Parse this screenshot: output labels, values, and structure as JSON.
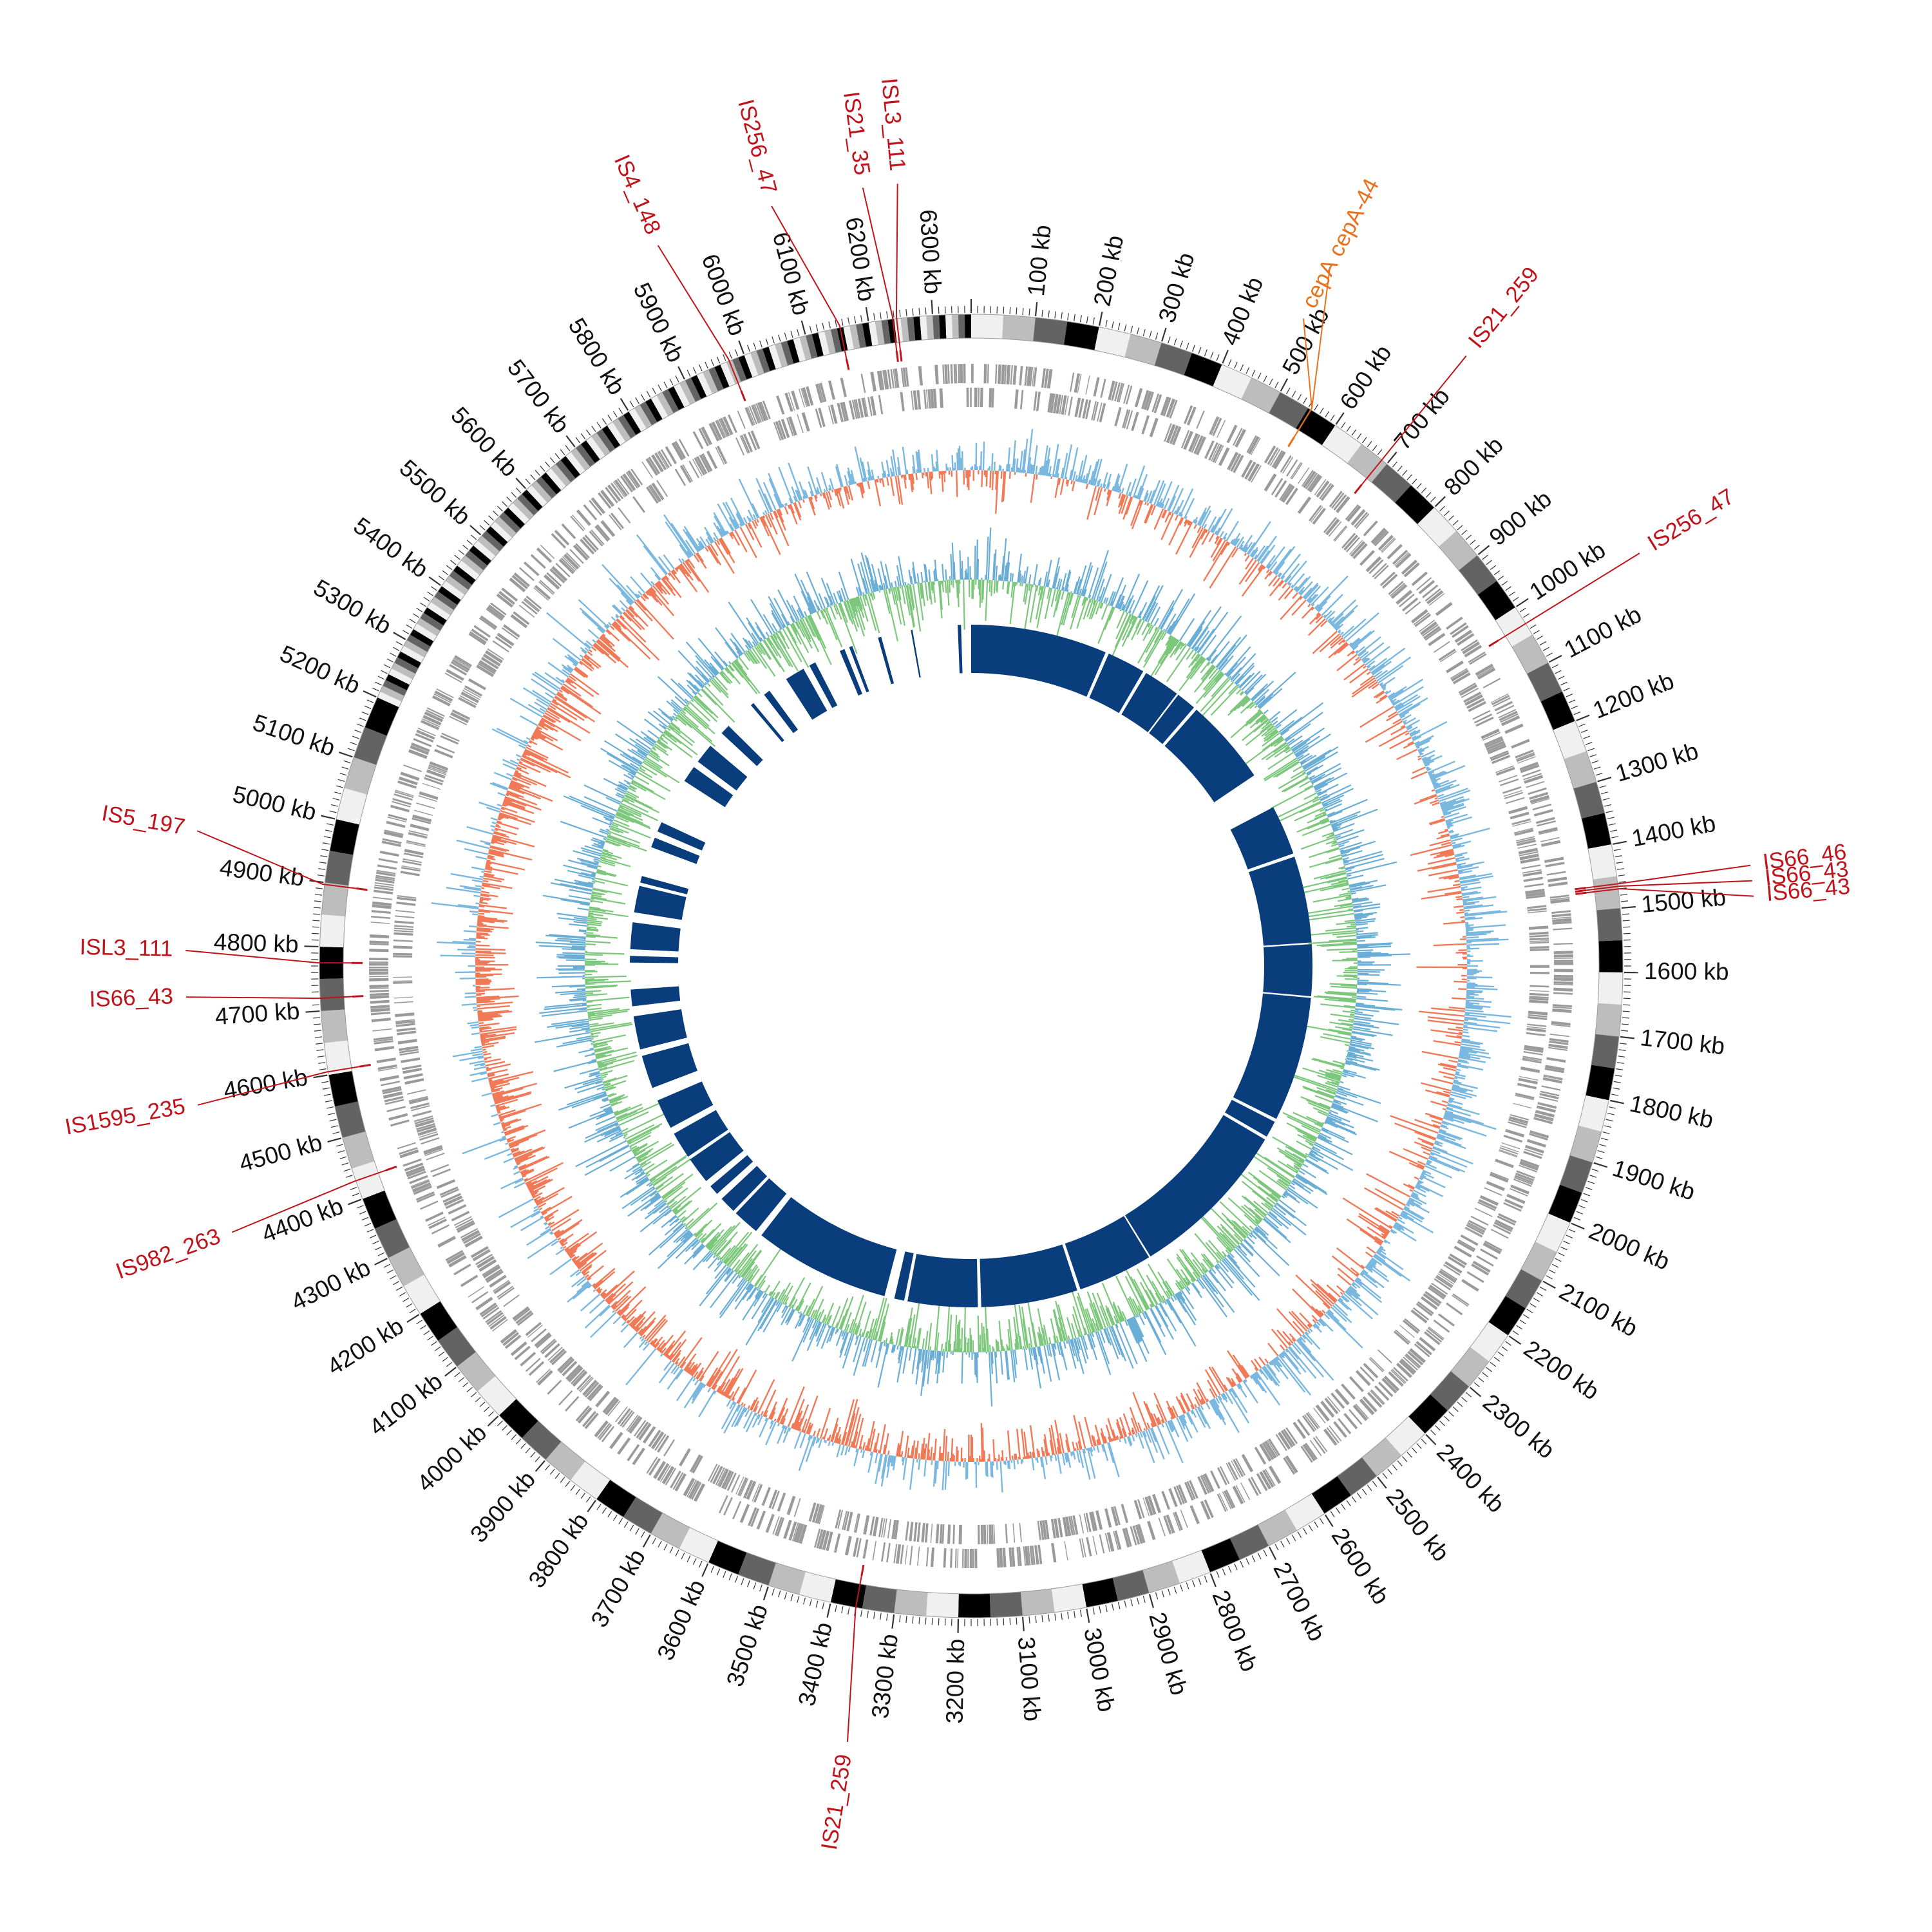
{
  "diagram": {
    "type": "circular-genome-map",
    "genome_size_kb": 6360,
    "colors": {
      "is_element": "#c0141c",
      "gene_highlight": "#e8731f",
      "gc_skew_positive": "#f07a58",
      "gc_skew_negative": "#7bb8df",
      "gc_content": "#7dc77d",
      "gc_content_dip": "#6aaed6",
      "cds_track": "#9a9a9a",
      "inner_blocks": "#0a3d7c",
      "ideogram_palette": [
        "#f0f0f0",
        "#bdbdbd",
        "#636363",
        "#000000"
      ]
    },
    "kb_ticks": [
      "100 kb",
      "200 kb",
      "300 kb",
      "400 kb",
      "500 kb",
      "600 kb",
      "700 kb",
      "800 kb",
      "900 kb",
      "1000 kb",
      "1100 kb",
      "1200 kb",
      "1300 kb",
      "1400 kb",
      "1500 kb",
      "1600 kb",
      "1700 kb",
      "1800 kb",
      "1900 kb",
      "2000 kb",
      "2100 kb",
      "2200 kb",
      "2300 kb",
      "2400 kb",
      "2500 kb",
      "2600 kb",
      "2700 kb",
      "2800 kb",
      "2900 kb",
      "3000 kb",
      "3100 kb",
      "3200 kb",
      "3300 kb",
      "3400 kb",
      "3500 kb",
      "3600 kb",
      "3700 kb",
      "3800 kb",
      "3900 kb",
      "4000 kb",
      "4100 kb",
      "4200 kb",
      "4300 kb",
      "4400 kb",
      "4500 kb",
      "4600 kb",
      "4700 kb",
      "4800 kb",
      "4900 kb",
      "5000 kb",
      "5100 kb",
      "5200 kb",
      "5300 kb",
      "5400 kb",
      "5500 kb",
      "5600 kb",
      "5700 kb",
      "5800 kb",
      "5900 kb",
      "6000 kb",
      "6100 kb",
      "6200 kb",
      "6300 kb"
    ],
    "annotations": [
      {
        "label": "cepA",
        "position_kb": 555,
        "kind": "gene"
      },
      {
        "label": "cepA-44",
        "position_kb": 555,
        "kind": "gene"
      },
      {
        "label": "IS21_259",
        "position_kb": 690,
        "kind": "is"
      },
      {
        "label": "IS256_47",
        "position_kb": 1030,
        "kind": "is"
      },
      {
        "label": "IS66_46",
        "position_kb": 1462,
        "kind": "is"
      },
      {
        "label": "IS66_43",
        "position_kb": 1466,
        "kind": "is"
      },
      {
        "label": "IS66_43",
        "position_kb": 1470,
        "kind": "is"
      },
      {
        "label": "IS21_259",
        "position_kb": 3360,
        "kind": "is"
      },
      {
        "label": "IS982_263",
        "position_kb": 4430,
        "kind": "is"
      },
      {
        "label": "IS1595_235",
        "position_kb": 4605,
        "kind": "is"
      },
      {
        "label": "IS66_43",
        "position_kb": 4720,
        "kind": "is"
      },
      {
        "label": "ISL3_111",
        "position_kb": 4775,
        "kind": "is"
      },
      {
        "label": "IS5_197",
        "position_kb": 4897,
        "kind": "is"
      },
      {
        "label": "IS4_148",
        "position_kb": 5975,
        "kind": "is"
      },
      {
        "label": "IS256_47",
        "position_kb": 6155,
        "kind": "is"
      },
      {
        "label": "IS21_35",
        "position_kb": 6238,
        "kind": "is"
      },
      {
        "label": "ISL3_111",
        "position_kb": 6244,
        "kind": "is"
      }
    ],
    "inner_blocks_kb": [
      [
        0,
        410
      ],
      [
        420,
        535
      ],
      [
        545,
        655
      ],
      [
        660,
        720
      ],
      [
        730,
        990
      ],
      [
        1100,
        1250
      ],
      [
        1260,
        1520
      ],
      [
        1525,
        1680
      ],
      [
        1685,
        2060
      ],
      [
        2070,
        2120
      ],
      [
        2130,
        2620
      ],
      [
        2625,
        2850
      ],
      [
        2860,
        3150
      ],
      [
        3160,
        3370
      ],
      [
        3380,
        3410
      ],
      [
        3440,
        3850
      ],
      [
        3870,
        3950
      ],
      [
        3960,
        4010
      ],
      [
        4030,
        4060
      ],
      [
        4080,
        4160
      ],
      [
        4170,
        4250
      ],
      [
        4270,
        4360
      ],
      [
        4400,
        4500
      ],
      [
        4520,
        4620
      ],
      [
        4650,
        4700
      ],
      [
        4780,
        4800
      ],
      [
        4820,
        4900
      ],
      [
        4930,
        5010
      ],
      [
        5020,
        5040
      ],
      [
        5130,
        5160
      ],
      [
        5180,
        5210
      ],
      [
        5350,
        5400
      ],
      [
        5420,
        5480
      ],
      [
        5530,
        5560
      ],
      [
        5650,
        5660
      ],
      [
        5700,
        5720
      ],
      [
        5780,
        5840
      ],
      [
        5860,
        5880
      ],
      [
        5960,
        5975
      ],
      [
        5990,
        6000
      ],
      [
        6080,
        6090
      ],
      [
        6180,
        6185
      ],
      [
        6320,
        6330
      ]
    ]
  }
}
